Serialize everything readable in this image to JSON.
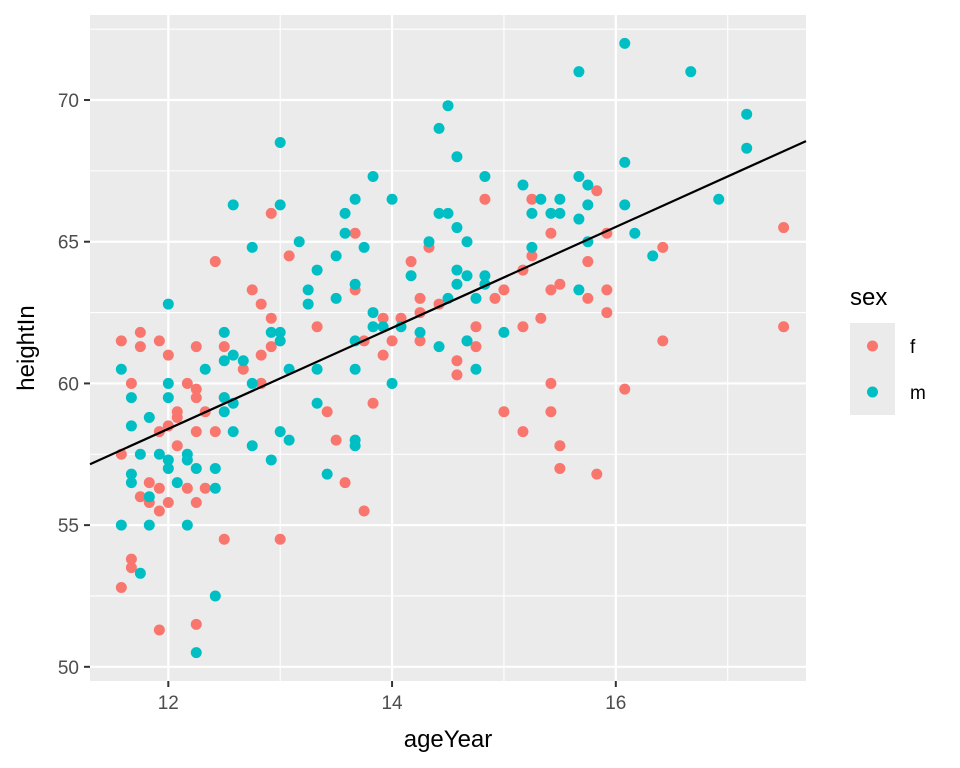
{
  "chart_data": {
    "type": "scatter",
    "title": "",
    "xlabel": "ageYear",
    "ylabel": "heightIn",
    "xlim": [
      11.3,
      17.7
    ],
    "ylim": [
      49.5,
      73.0
    ],
    "x_ticks": [
      12,
      14,
      16
    ],
    "x_tick_labels": [
      "12",
      "14",
      "16"
    ],
    "y_ticks": [
      50,
      55,
      60,
      65,
      70
    ],
    "y_tick_labels": [
      "50",
      "55",
      "60",
      "65",
      "70"
    ],
    "grid": true,
    "legend": {
      "title": "sex",
      "position": "right"
    },
    "series": [
      {
        "name": "f",
        "color": "#F8766D",
        "points": [
          [
            11.58,
            61.5
          ],
          [
            11.58,
            57.5
          ],
          [
            11.58,
            52.8
          ],
          [
            11.67,
            60.0
          ],
          [
            11.67,
            53.8
          ],
          [
            11.67,
            53.5
          ],
          [
            11.75,
            61.8
          ],
          [
            11.75,
            61.3
          ],
          [
            11.75,
            56.0
          ],
          [
            11.83,
            56.5
          ],
          [
            11.83,
            55.8
          ],
          [
            11.92,
            61.5
          ],
          [
            11.92,
            58.3
          ],
          [
            11.92,
            56.3
          ],
          [
            11.92,
            55.5
          ],
          [
            11.92,
            51.3
          ],
          [
            12.0,
            61.0
          ],
          [
            12.0,
            58.5
          ],
          [
            12.0,
            55.8
          ],
          [
            12.08,
            59.0
          ],
          [
            12.08,
            58.8
          ],
          [
            12.08,
            57.8
          ],
          [
            12.17,
            60.0
          ],
          [
            12.17,
            56.3
          ],
          [
            12.25,
            59.8
          ],
          [
            12.25,
            59.5
          ],
          [
            12.25,
            61.3
          ],
          [
            12.25,
            58.3
          ],
          [
            12.25,
            55.8
          ],
          [
            12.25,
            51.5
          ],
          [
            12.33,
            59.0
          ],
          [
            12.33,
            56.3
          ],
          [
            12.42,
            64.3
          ],
          [
            12.42,
            58.3
          ],
          [
            12.5,
            61.3
          ],
          [
            12.5,
            59.5
          ],
          [
            12.5,
            54.5
          ],
          [
            12.67,
            60.5
          ],
          [
            12.75,
            63.3
          ],
          [
            12.83,
            62.8
          ],
          [
            12.83,
            61.0
          ],
          [
            12.83,
            60.0
          ],
          [
            12.92,
            66.0
          ],
          [
            12.92,
            62.3
          ],
          [
            12.92,
            61.3
          ],
          [
            13.0,
            54.5
          ],
          [
            13.08,
            64.5
          ],
          [
            13.33,
            62.0
          ],
          [
            13.42,
            59.0
          ],
          [
            13.5,
            58.0
          ],
          [
            13.58,
            56.5
          ],
          [
            13.67,
            65.3
          ],
          [
            13.67,
            63.3
          ],
          [
            13.75,
            61.5
          ],
          [
            13.75,
            55.5
          ],
          [
            13.83,
            59.3
          ],
          [
            13.92,
            62.3
          ],
          [
            13.92,
            61.0
          ],
          [
            14.0,
            61.5
          ],
          [
            14.08,
            62.3
          ],
          [
            14.17,
            64.3
          ],
          [
            14.25,
            63.0
          ],
          [
            14.25,
            62.5
          ],
          [
            14.25,
            61.5
          ],
          [
            14.33,
            64.8
          ],
          [
            14.42,
            62.8
          ],
          [
            14.58,
            60.8
          ],
          [
            14.58,
            60.3
          ],
          [
            14.67,
            61.5
          ],
          [
            14.75,
            62.0
          ],
          [
            14.75,
            61.3
          ],
          [
            14.83,
            66.5
          ],
          [
            14.92,
            63.0
          ],
          [
            15.0,
            63.3
          ],
          [
            15.0,
            59.0
          ],
          [
            15.17,
            64.0
          ],
          [
            15.17,
            62.0
          ],
          [
            15.17,
            58.3
          ],
          [
            15.25,
            66.5
          ],
          [
            15.25,
            64.5
          ],
          [
            15.33,
            62.3
          ],
          [
            15.42,
            65.3
          ],
          [
            15.42,
            63.3
          ],
          [
            15.42,
            60.0
          ],
          [
            15.42,
            59.0
          ],
          [
            15.5,
            63.5
          ],
          [
            15.5,
            57.8
          ],
          [
            15.5,
            57.0
          ],
          [
            15.75,
            64.3
          ],
          [
            15.75,
            63.0
          ],
          [
            15.83,
            66.8
          ],
          [
            15.83,
            56.8
          ],
          [
            15.92,
            65.3
          ],
          [
            15.92,
            63.3
          ],
          [
            15.92,
            62.5
          ],
          [
            16.08,
            59.8
          ],
          [
            16.42,
            64.8
          ],
          [
            16.42,
            61.5
          ],
          [
            17.5,
            65.5
          ],
          [
            17.5,
            62.0
          ]
        ]
      },
      {
        "name": "m",
        "color": "#00BFC4",
        "points": [
          [
            11.58,
            60.5
          ],
          [
            11.58,
            55.0
          ],
          [
            11.67,
            59.5
          ],
          [
            11.67,
            58.5
          ],
          [
            11.67,
            56.8
          ],
          [
            11.67,
            56.5
          ],
          [
            11.75,
            57.5
          ],
          [
            11.75,
            53.3
          ],
          [
            11.83,
            58.8
          ],
          [
            11.83,
            56.0
          ],
          [
            11.83,
            55.0
          ],
          [
            11.92,
            57.5
          ],
          [
            12.0,
            62.8
          ],
          [
            12.0,
            60.0
          ],
          [
            12.0,
            59.5
          ],
          [
            12.0,
            57.3
          ],
          [
            12.0,
            57.0
          ],
          [
            12.08,
            56.5
          ],
          [
            12.17,
            57.5
          ],
          [
            12.17,
            57.3
          ],
          [
            12.17,
            55.0
          ],
          [
            12.25,
            57.0
          ],
          [
            12.25,
            50.5
          ],
          [
            12.33,
            60.5
          ],
          [
            12.42,
            57.0
          ],
          [
            12.42,
            56.3
          ],
          [
            12.42,
            52.5
          ],
          [
            12.5,
            61.8
          ],
          [
            12.5,
            60.8
          ],
          [
            12.5,
            59.5
          ],
          [
            12.5,
            59.0
          ],
          [
            12.58,
            66.3
          ],
          [
            12.58,
            61.0
          ],
          [
            12.58,
            59.3
          ],
          [
            12.58,
            58.3
          ],
          [
            12.67,
            60.8
          ],
          [
            12.75,
            64.8
          ],
          [
            12.75,
            60.0
          ],
          [
            12.75,
            57.8
          ],
          [
            12.92,
            61.8
          ],
          [
            12.92,
            57.3
          ],
          [
            13.0,
            68.5
          ],
          [
            13.0,
            66.3
          ],
          [
            13.0,
            61.8
          ],
          [
            13.0,
            61.5
          ],
          [
            13.0,
            58.3
          ],
          [
            13.08,
            60.5
          ],
          [
            13.08,
            58.0
          ],
          [
            13.17,
            65.0
          ],
          [
            13.25,
            63.3
          ],
          [
            13.25,
            62.8
          ],
          [
            13.33,
            64.0
          ],
          [
            13.33,
            60.5
          ],
          [
            13.33,
            59.3
          ],
          [
            13.42,
            56.8
          ],
          [
            13.5,
            64.5
          ],
          [
            13.5,
            63.0
          ],
          [
            13.58,
            66.0
          ],
          [
            13.58,
            65.3
          ],
          [
            13.67,
            66.5
          ],
          [
            13.67,
            63.5
          ],
          [
            13.67,
            61.5
          ],
          [
            13.67,
            60.5
          ],
          [
            13.67,
            58.0
          ],
          [
            13.67,
            57.8
          ],
          [
            13.75,
            64.8
          ],
          [
            13.83,
            67.3
          ],
          [
            13.83,
            62.5
          ],
          [
            13.83,
            62.0
          ],
          [
            13.92,
            62.0
          ],
          [
            14.0,
            66.5
          ],
          [
            14.0,
            60.0
          ],
          [
            14.08,
            62.0
          ],
          [
            14.17,
            63.8
          ],
          [
            14.25,
            61.8
          ],
          [
            14.33,
            65.0
          ],
          [
            14.42,
            69.0
          ],
          [
            14.42,
            66.0
          ],
          [
            14.42,
            61.3
          ],
          [
            14.5,
            69.8
          ],
          [
            14.5,
            66.0
          ],
          [
            14.5,
            63.0
          ],
          [
            14.58,
            68.0
          ],
          [
            14.58,
            65.5
          ],
          [
            14.58,
            64.0
          ],
          [
            14.58,
            63.5
          ],
          [
            14.67,
            65.0
          ],
          [
            14.67,
            63.8
          ],
          [
            14.67,
            61.5
          ],
          [
            14.75,
            63.0
          ],
          [
            14.75,
            60.5
          ],
          [
            14.83,
            67.3
          ],
          [
            14.83,
            63.8
          ],
          [
            14.83,
            63.5
          ],
          [
            15.0,
            61.8
          ],
          [
            15.17,
            67.0
          ],
          [
            15.25,
            66.0
          ],
          [
            15.25,
            64.8
          ],
          [
            15.33,
            66.5
          ],
          [
            15.42,
            66.0
          ],
          [
            15.5,
            66.5
          ],
          [
            15.5,
            66.0
          ],
          [
            15.67,
            71.0
          ],
          [
            15.67,
            67.3
          ],
          [
            15.67,
            65.8
          ],
          [
            15.67,
            63.3
          ],
          [
            15.75,
            67.0
          ],
          [
            15.75,
            66.3
          ],
          [
            15.75,
            65.0
          ],
          [
            16.08,
            72.0
          ],
          [
            16.08,
            67.8
          ],
          [
            16.08,
            66.3
          ],
          [
            16.17,
            65.3
          ],
          [
            16.33,
            64.5
          ],
          [
            16.67,
            71.0
          ],
          [
            16.92,
            66.5
          ],
          [
            17.17,
            69.5
          ],
          [
            17.17,
            68.3
          ]
        ]
      }
    ],
    "regression_line": {
      "color": "#000000",
      "x": [
        11.3,
        17.7
      ],
      "y": [
        57.15,
        68.55
      ]
    }
  }
}
